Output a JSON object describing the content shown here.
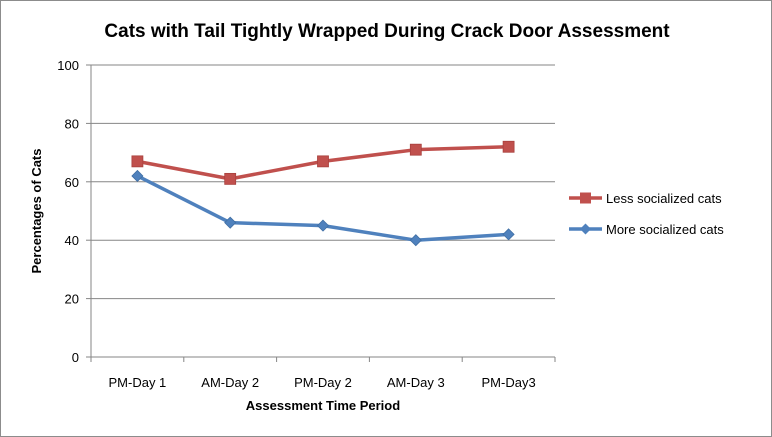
{
  "chart_data": {
    "type": "line",
    "title": "Cats  with Tail Tightly Wrapped During Crack Door Assessment",
    "xlabel": "Assessment Time Period",
    "ylabel": "Percentages of Cats",
    "categories": [
      "PM-Day 1",
      "AM-Day 2",
      "PM-Day 2",
      "AM-Day 3",
      "PM-Day3"
    ],
    "ylim": [
      0,
      100
    ],
    "yticks": [
      0,
      20,
      40,
      60,
      80,
      100
    ],
    "grid": true,
    "legend_position": "right",
    "series": [
      {
        "name": "Less socialized cats",
        "values": [
          67,
          61,
          67,
          71,
          72
        ],
        "color": "#c0504d",
        "marker": "square"
      },
      {
        "name": "More socialized cats",
        "values": [
          62,
          46,
          45,
          40,
          42
        ],
        "color": "#4f81bd",
        "marker": "diamond"
      }
    ]
  }
}
